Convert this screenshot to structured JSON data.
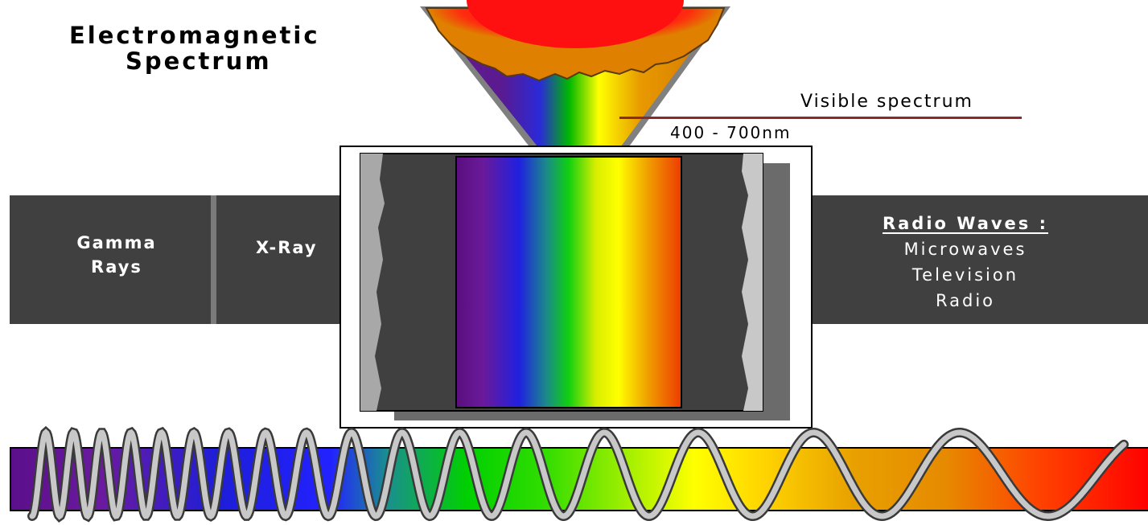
{
  "title": {
    "line1": "Electromagnetic",
    "line2": "Spectrum"
  },
  "visible": {
    "label": "Visible spectrum",
    "range": "400 - 700nm"
  },
  "band": {
    "gamma": {
      "line1": "Gamma",
      "line2": "Rays"
    },
    "xray": "X-Ray",
    "radio": {
      "heading": "Radio Waves :",
      "items": [
        "Microwaves",
        "Television",
        "Radio"
      ]
    }
  },
  "colors": {
    "band": "#404040",
    "divider": "#7a7a7a",
    "annotation_line": "#8b2a2a",
    "violet": "#5b0f8a",
    "blue": "#2222ff",
    "green": "#00d000",
    "yellow": "#ffff00",
    "orange": "#e68a00",
    "red": "#ff0000"
  }
}
